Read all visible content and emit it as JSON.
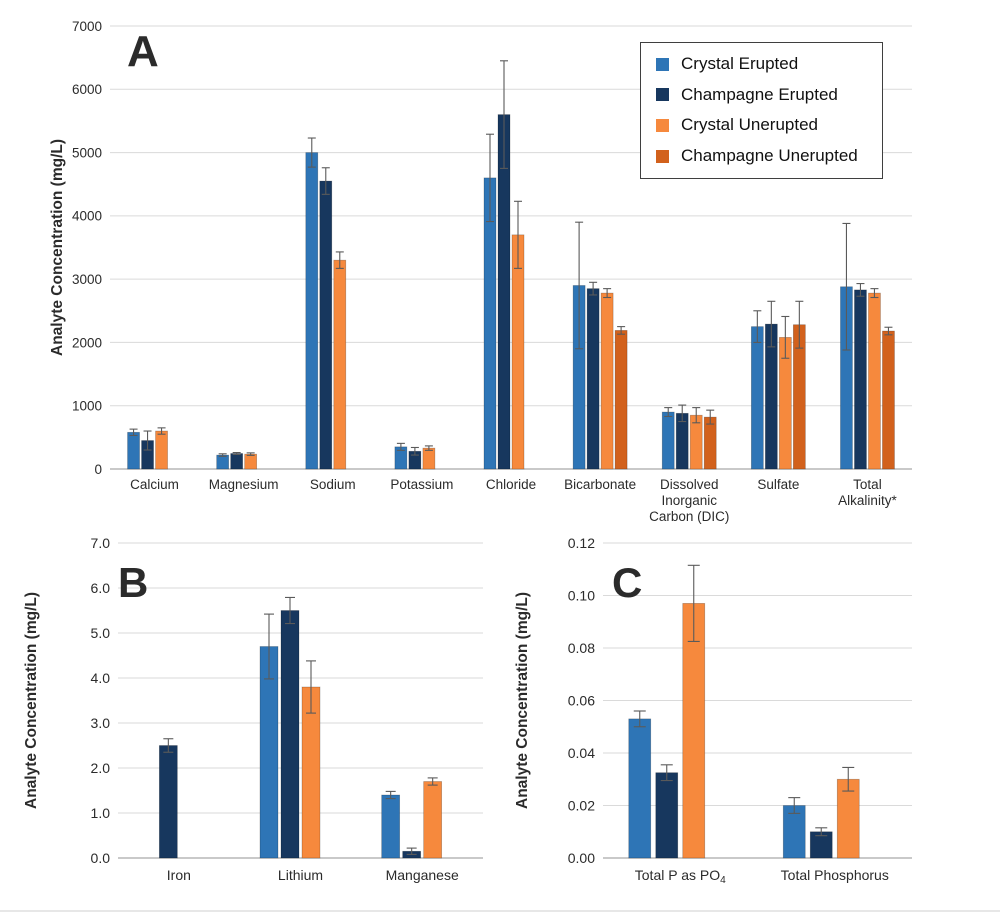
{
  "figure": {
    "background": "#ffffff",
    "text_color": "#2b2b2b",
    "gridline_color": "#dadada",
    "axis_line_color": "#b7b7b7",
    "error_bar_color": "#5a5a5a"
  },
  "legend": {
    "position": "top-right-of-panel-A",
    "items": [
      {
        "label": "Crystal Erupted",
        "color": "#2E75B6"
      },
      {
        "label": "Champagne Erupted",
        "color": "#17375E"
      },
      {
        "label": "Crystal Unerupted",
        "color": "#F6893D"
      },
      {
        "label": "Champagne Unerupted",
        "color": "#D2611C"
      }
    ]
  },
  "chart_data": [
    {
      "id": "A",
      "type": "bar",
      "panel_label": "A",
      "ylabel": "Analyte Concentration (mg/L)",
      "ylim": [
        0,
        7000
      ],
      "grid": true,
      "ytick_values": [
        0,
        1000,
        2000,
        3000,
        4000,
        5000,
        6000,
        7000
      ],
      "ytick_labels": [
        "0",
        "1000",
        "2000",
        "3000",
        "4000",
        "5000",
        "6000",
        "7000"
      ],
      "categories": [
        "Calcium",
        "Magnesium",
        "Sodium",
        "Potassium",
        "Chloride",
        "Bicarbonate",
        "Dissolved\nInorganic\nCarbon (DIC)",
        "Sulfate",
        "Total\nAlkalinity*"
      ],
      "series": [
        {
          "name": "Crystal Erupted",
          "values": [
            580,
            220,
            5000,
            350,
            4600,
            2900,
            900,
            2250,
            2880
          ],
          "errors": [
            50,
            20,
            230,
            55,
            690,
            1000,
            70,
            250,
            1000
          ]
        },
        {
          "name": "Champagne Erupted",
          "values": [
            450,
            245,
            4550,
            280,
            5600,
            2850,
            880,
            2290,
            2830
          ],
          "errors": [
            150,
            15,
            210,
            60,
            850,
            100,
            130,
            360,
            100
          ]
        },
        {
          "name": "Crystal Unerupted",
          "values": [
            600,
            235,
            3300,
            330,
            3700,
            2780,
            850,
            2080,
            2780
          ],
          "errors": [
            50,
            20,
            130,
            35,
            530,
            70,
            120,
            330,
            70
          ]
        },
        {
          "name": "Champagne Unerupted",
          "values": [
            null,
            null,
            null,
            null,
            null,
            2190,
            820,
            2280,
            2180
          ],
          "errors": [
            null,
            null,
            null,
            null,
            null,
            60,
            110,
            370,
            60
          ]
        }
      ]
    },
    {
      "id": "B",
      "type": "bar",
      "panel_label": "B",
      "ylabel": "Analyte Concentration (mg/L)",
      "ylim": [
        0,
        7
      ],
      "grid": true,
      "ytick_values": [
        0,
        1,
        2,
        3,
        4,
        5,
        6,
        7
      ],
      "ytick_labels": [
        "0.0",
        "1.0",
        "2.0",
        "3.0",
        "4.0",
        "5.0",
        "6.0",
        "7.0"
      ],
      "categories": [
        "Iron",
        "Lithium",
        "Manganese"
      ],
      "series": [
        {
          "name": "Crystal Erupted",
          "values": [
            null,
            4.7,
            1.4
          ],
          "errors": [
            null,
            0.72,
            0.08
          ]
        },
        {
          "name": "Champagne Erupted",
          "values": [
            2.5,
            5.5,
            0.15
          ],
          "errors": [
            0.15,
            0.29,
            0.07
          ]
        },
        {
          "name": "Crystal Unerupted",
          "values": [
            null,
            3.8,
            1.7
          ],
          "errors": [
            null,
            0.58,
            0.08
          ]
        },
        {
          "name": "Champagne Unerupted",
          "values": [
            null,
            null,
            null
          ],
          "errors": [
            null,
            null,
            null
          ]
        }
      ]
    },
    {
      "id": "C",
      "type": "bar",
      "panel_label": "C",
      "ylabel": "Analyte Concentration (mg/L)",
      "ylim": [
        0,
        0.12
      ],
      "grid": true,
      "ytick_values": [
        0,
        0.02,
        0.04,
        0.06,
        0.08,
        0.1,
        0.12
      ],
      "ytick_labels": [
        "0.00",
        "0.02",
        "0.04",
        "0.06",
        "0.08",
        "0.10",
        "0.12"
      ],
      "categories": [
        "Total P as PO₄",
        "Total Phosphorus"
      ],
      "series": [
        {
          "name": "Crystal Erupted",
          "values": [
            0.053,
            0.02
          ],
          "errors": [
            0.003,
            0.003
          ]
        },
        {
          "name": "Champagne Erupted",
          "values": [
            0.0325,
            0.01
          ],
          "errors": [
            0.003,
            0.0015
          ]
        },
        {
          "name": "Crystal Unerupted",
          "values": [
            0.097,
            0.03
          ],
          "errors": [
            0.0145,
            0.0045
          ]
        },
        {
          "name": "Champagne Unerupted",
          "values": [
            null,
            null
          ],
          "errors": [
            null,
            null
          ]
        }
      ]
    }
  ]
}
